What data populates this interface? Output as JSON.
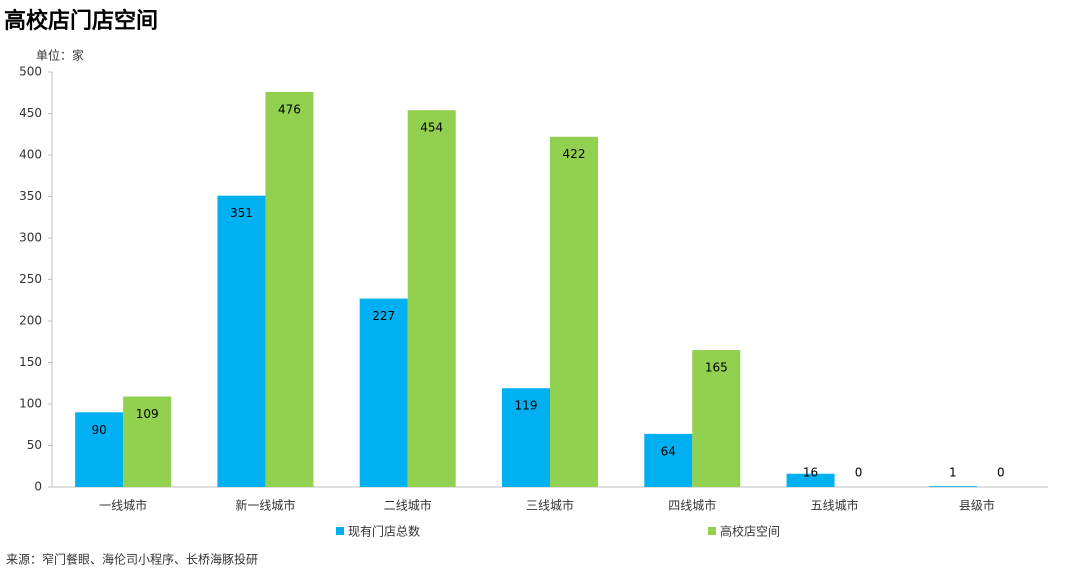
{
  "chart_data": {
    "type": "bar",
    "title": "高校店门店空间",
    "unit": "单位：家",
    "source": "来源：窄门餐眼、海伦司小程序、长桥海豚投研",
    "categories": [
      "一线城市",
      "新一线城市",
      "二线城市",
      "三线城市",
      "四线城市",
      "五线城市",
      "县级市"
    ],
    "series": [
      {
        "name": "现有门店总数",
        "color": "#00b0f0",
        "values": [
          90,
          351,
          227,
          119,
          64,
          16,
          1
        ]
      },
      {
        "name": "高校店空间",
        "color": "#92d050",
        "values": [
          109,
          476,
          454,
          422,
          165,
          0,
          0
        ]
      }
    ],
    "ylim": [
      0,
      500
    ],
    "yticks": [
      0,
      50,
      100,
      150,
      200,
      250,
      300,
      350,
      400,
      450,
      500
    ],
    "grid": false
  }
}
